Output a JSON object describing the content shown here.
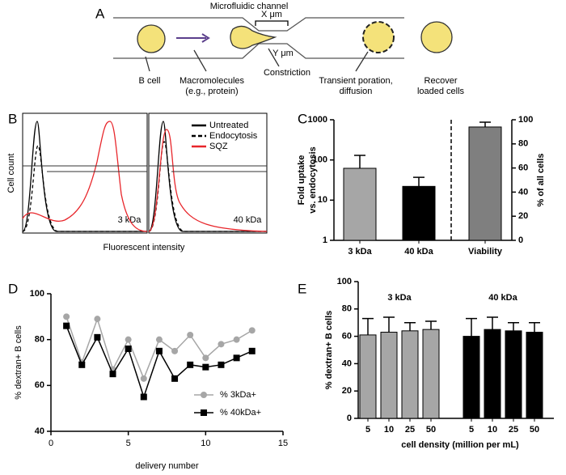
{
  "panel_labels": [
    "A",
    "B",
    "C",
    "D",
    "E"
  ],
  "diagram": {
    "channel_label": "Microfluidic channel",
    "x_label": "X μm",
    "y_label": "Y μm",
    "b_cell": "B cell",
    "macromolecules": [
      "Macromolecules",
      "(e.g., protein)"
    ],
    "constriction": "Constriction",
    "poration": [
      "Transient poration,",
      "diffusion"
    ],
    "recover": [
      "Recover",
      "loaded cells"
    ]
  },
  "histograms": {
    "y_label": "Cell count",
    "x_label": "Fluorescent intensity",
    "panels": [
      "3 kDa",
      "40 kDa"
    ],
    "legend": [
      {
        "name": "Untreated",
        "color": "#000000",
        "style": "solid"
      },
      {
        "name": "Endocytosis",
        "color": "#000000",
        "style": "dashed"
      },
      {
        "name": "SQZ",
        "color": "#e8262b",
        "style": "solid"
      }
    ]
  },
  "chart_data": [
    {
      "type": "bar",
      "categories": [
        "3 kDa",
        "40 kDa",
        "Viability"
      ],
      "y_label": [
        "Fold uptake",
        "vs. endocytosis"
      ],
      "y2_label": "% of all cells",
      "ylim": [
        1,
        1000
      ],
      "yticks": [
        1,
        10,
        100,
        1000
      ],
      "log_scale": true,
      "y2lim": [
        0,
        100
      ],
      "y2ticks": [
        0,
        20,
        40,
        60,
        80,
        100
      ],
      "series": [
        {
          "color": "#a6a6a6",
          "values": [
            62,
            null,
            null
          ],
          "errors": [
            68,
            null,
            null
          ]
        },
        {
          "color": "#000000",
          "values": [
            null,
            22,
            null
          ],
          "errors": [
            null,
            15,
            null
          ]
        },
        {
          "color": "#7f7f7f",
          "axis": "y2",
          "values": [
            null,
            null,
            94
          ],
          "errors": [
            null,
            null,
            4
          ]
        }
      ]
    },
    {
      "type": "line",
      "x": [
        1,
        2,
        3,
        4,
        5,
        6,
        7,
        8,
        9,
        10,
        11,
        12,
        13
      ],
      "xlim": [
        0,
        15
      ],
      "xticks": [
        0,
        5,
        10,
        15
      ],
      "ylim": [
        40,
        100
      ],
      "yticks": [
        40,
        60,
        80,
        100
      ],
      "x_label": "delivery number",
      "y_label": "% dextran+ B cells",
      "legend": "lower right",
      "series": [
        {
          "name": "% 3kDa+",
          "color": "#a6a6a6",
          "marker": "circle",
          "values": [
            90,
            70,
            89,
            67,
            80,
            63,
            80,
            75,
            82,
            72,
            78,
            80,
            84
          ]
        },
        {
          "name": "% 40kDa+",
          "color": "#000000",
          "marker": "square",
          "values": [
            86,
            69,
            81,
            65,
            76,
            55,
            75,
            63,
            69,
            68,
            69,
            72,
            75
          ]
        }
      ]
    },
    {
      "type": "bar",
      "categories": [
        "5",
        "10",
        "25",
        "50"
      ],
      "ylim": [
        0,
        100
      ],
      "yticks": [
        0,
        20,
        40,
        60,
        80,
        100
      ],
      "x_label": "cell density (million per mL)",
      "y_label": "% dextran+ B cells",
      "series": [
        {
          "name": "3 kDa",
          "color": "#a6a6a6",
          "values": [
            61,
            63,
            64,
            65
          ],
          "errors": [
            12,
            11,
            6,
            6
          ]
        },
        {
          "name": "40 kDa",
          "color": "#000000",
          "values": [
            60,
            65,
            64,
            63
          ],
          "errors": [
            13,
            9,
            6,
            7
          ]
        }
      ]
    }
  ]
}
